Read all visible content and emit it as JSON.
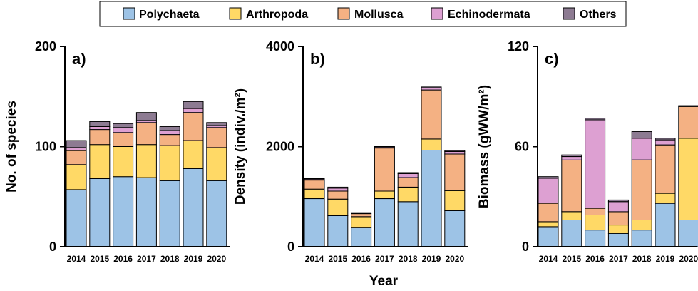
{
  "figure": {
    "xlabel": "Year"
  },
  "legend": {
    "items": [
      {
        "label": "Polychaeta",
        "color": "#9dc3e6"
      },
      {
        "label": "Arthropoda",
        "color": "#ffd966"
      },
      {
        "label": "Mollusca",
        "color": "#f4b183"
      },
      {
        "label": "Echinodermata",
        "color": "#dda0d2"
      },
      {
        "label": "Others",
        "color": "#8d7b92"
      }
    ]
  },
  "chart_data": [
    {
      "type": "bar",
      "stacked": true,
      "panel_label": "a)",
      "ylabel": "No. of species",
      "ylim": [
        0,
        200
      ],
      "yticks": [
        "0",
        "100",
        "200"
      ],
      "categories": [
        "2014",
        "2015",
        "2016",
        "2017",
        "2018",
        "2019",
        "2020"
      ],
      "series": [
        {
          "name": "Polychaeta",
          "values": [
            57,
            68,
            70,
            69,
            66,
            78,
            66
          ]
        },
        {
          "name": "Arthropoda",
          "values": [
            25,
            34,
            30,
            33,
            35,
            28,
            33
          ]
        },
        {
          "name": "Mollusca",
          "values": [
            14,
            15,
            14,
            22,
            11,
            28,
            20
          ]
        },
        {
          "name": "Echinodermata",
          "values": [
            3,
            3,
            5,
            2,
            4,
            4,
            2
          ]
        },
        {
          "name": "Others",
          "values": [
            7,
            5,
            4,
            8,
            4,
            7,
            3
          ]
        }
      ]
    },
    {
      "type": "bar",
      "stacked": true,
      "panel_label": "b)",
      "ylabel": "Density (indiv./m²)",
      "ylim": [
        0,
        4000
      ],
      "yticks": [
        "0",
        "2000",
        "4000"
      ],
      "categories": [
        "2014",
        "2015",
        "2016",
        "2017",
        "2018",
        "2019",
        "2020"
      ],
      "series": [
        {
          "name": "Polychaeta",
          "values": [
            960,
            620,
            390,
            960,
            900,
            1930,
            720
          ]
        },
        {
          "name": "Arthropoda",
          "values": [
            190,
            330,
            210,
            150,
            290,
            220,
            400
          ]
        },
        {
          "name": "Mollusca",
          "values": [
            180,
            160,
            60,
            860,
            190,
            980,
            730
          ]
        },
        {
          "name": "Echinodermata",
          "values": [
            20,
            60,
            10,
            20,
            80,
            40,
            50
          ]
        },
        {
          "name": "Others",
          "values": [
            10,
            20,
            10,
            10,
            20,
            20,
            20
          ]
        }
      ]
    },
    {
      "type": "bar",
      "stacked": true,
      "panel_label": "c)",
      "ylabel": "Biomass (gWW/m²)",
      "ylim": [
        0,
        120
      ],
      "yticks": [
        "0",
        "60",
        "120"
      ],
      "categories": [
        "2014",
        "2015",
        "2016",
        "2017",
        "2018",
        "2019",
        "2020"
      ],
      "series": [
        {
          "name": "Polychaeta",
          "values": [
            12,
            16,
            10,
            8,
            10,
            26,
            16
          ]
        },
        {
          "name": "Arthropoda",
          "values": [
            3,
            5,
            9,
            5,
            6,
            6,
            49
          ]
        },
        {
          "name": "Mollusca",
          "values": [
            11,
            31,
            4,
            8,
            36,
            29,
            19
          ]
        },
        {
          "name": "Echinodermata",
          "values": [
            15,
            2,
            53,
            6,
            13,
            3,
            0
          ]
        },
        {
          "name": "Others",
          "values": [
            1,
            1,
            1,
            1,
            4,
            1,
            0.5
          ]
        }
      ]
    }
  ]
}
